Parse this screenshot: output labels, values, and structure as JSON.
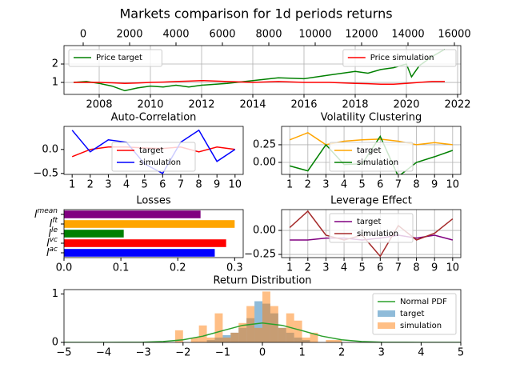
{
  "title": "Markets comparison for 1d periods returns",
  "chart_data": [
    {
      "type": "line",
      "grid": true,
      "x": [
        2007,
        2007.5,
        2008,
        2008.5,
        2009,
        2009.5,
        2010,
        2010.5,
        2011,
        2011.5,
        2012,
        2013,
        2014,
        2015,
        2016,
        2017,
        2018,
        2018.5,
        2019,
        2019.5,
        2020,
        2020.2,
        2020.5,
        2021,
        2021.5
      ],
      "xlim": [
        2006.625,
        2022.125
      ],
      "xticks": [
        2008,
        2010,
        2012,
        2014,
        2016,
        2018,
        2020,
        2022
      ],
      "x2lim": [
        -828,
        16276
      ],
      "x2ticks": [
        0,
        2000,
        4000,
        6000,
        8000,
        10000,
        12000,
        14000,
        16000
      ],
      "ylim": [
        0.35,
        3.0
      ],
      "yticks": [
        1,
        2
      ],
      "series": [
        {
          "name": "Price target",
          "color": "#008000",
          "legend": "upper left",
          "values": [
            1.0,
            1.05,
            0.95,
            0.8,
            0.55,
            0.7,
            0.8,
            0.75,
            0.85,
            0.75,
            0.85,
            0.95,
            1.1,
            1.25,
            1.2,
            1.4,
            1.6,
            1.5,
            1.7,
            1.8,
            2.0,
            1.3,
            1.9,
            2.4,
            2.8
          ]
        },
        {
          "name": "Price simulation",
          "color": "#ff0000",
          "legend": "upper right",
          "values": [
            1.0,
            1.0,
            1.0,
            0.98,
            0.95,
            0.97,
            1.0,
            1.02,
            1.05,
            1.07,
            1.1,
            1.05,
            1.0,
            1.05,
            1.0,
            1.0,
            0.95,
            0.93,
            0.9,
            0.9,
            0.95,
            0.97,
            1.0,
            1.05,
            1.05
          ]
        }
      ]
    },
    {
      "type": "line",
      "title": "Auto-Correlation",
      "grid": false,
      "legend": "lower center",
      "x": [
        1,
        2,
        3,
        4,
        5,
        6,
        7,
        8,
        9,
        10
      ],
      "xlim": [
        0.55,
        10.45
      ],
      "xticks": [
        1,
        2,
        3,
        4,
        5,
        6,
        7,
        8,
        9,
        10
      ],
      "ylim": [
        -0.52,
        0.48
      ],
      "yticks": [
        {
          "value": -0.5,
          "label": "−0.5"
        },
        {
          "value": 0,
          "label": "0.0"
        }
      ],
      "series": [
        {
          "name": "target",
          "color": "#ff0000",
          "values": [
            -0.15,
            0.0,
            0.05,
            0.05,
            0.03,
            0.02,
            0.05,
            -0.05,
            0.05,
            0.0
          ]
        },
        {
          "name": "simulation",
          "color": "#0000ff",
          "values": [
            0.4,
            -0.05,
            0.2,
            0.15,
            -0.3,
            -0.5,
            0.15,
            0.4,
            -0.25,
            0.0
          ]
        }
      ]
    },
    {
      "type": "line",
      "title": "Volatility Clustering",
      "grid": true,
      "legend": "lower center",
      "x": [
        1,
        2,
        3,
        4,
        5,
        6,
        7,
        8,
        9,
        10
      ],
      "xlim": [
        0.55,
        10.45
      ],
      "xticks": [
        1,
        2,
        3,
        4,
        5,
        6,
        7,
        8,
        9,
        10
      ],
      "ylim": [
        -0.17,
        0.51
      ],
      "yticks": [
        {
          "value": 0,
          "label": "0.00"
        },
        0.25
      ],
      "series": [
        {
          "name": "target",
          "color": "#ffa500",
          "values": [
            0.32,
            0.42,
            0.25,
            0.3,
            0.32,
            0.33,
            0.3,
            0.25,
            0.28,
            0.25
          ]
        },
        {
          "name": "simulation",
          "color": "#008000",
          "values": [
            -0.05,
            -0.12,
            0.25,
            -0.03,
            -0.02,
            0.37,
            -0.2,
            0.0,
            0.08,
            0.17
          ]
        }
      ]
    },
    {
      "type": "hbar",
      "title": "Losses",
      "grid": false,
      "categories": [
        [
          "l",
          "mean"
        ],
        [
          "l",
          "ft"
        ],
        [
          "l",
          "le"
        ],
        [
          "l",
          "vc"
        ],
        [
          "l",
          "ac"
        ]
      ],
      "values": [
        0.24,
        0.3,
        0.105,
        0.285,
        0.265
      ],
      "colors": [
        "#800080",
        "#ffa500",
        "#008000",
        "#ff0000",
        "#0000ff"
      ],
      "xlim": [
        0,
        0.315
      ],
      "xticks": [
        {
          "value": 0,
          "label": "0.0"
        },
        0.1,
        0.2,
        0.3
      ]
    },
    {
      "type": "line",
      "title": "Leverage Effect",
      "grid": true,
      "legend": "upper center",
      "x": [
        1,
        2,
        3,
        4,
        5,
        6,
        7,
        8,
        9,
        10
      ],
      "xlim": [
        0.55,
        10.45
      ],
      "xticks": [
        1,
        2,
        3,
        4,
        5,
        6,
        7,
        8,
        9,
        10
      ],
      "ylim": [
        -0.283,
        0.217
      ],
      "yticks": [
        {
          "value": -0.25,
          "label": "−0.25"
        },
        {
          "value": 0,
          "label": "0.00"
        }
      ],
      "series": [
        {
          "name": "target",
          "color": "#800080",
          "values": [
            -0.1,
            -0.1,
            -0.08,
            -0.08,
            -0.1,
            -0.08,
            -0.05,
            -0.08,
            -0.05,
            -0.1
          ]
        },
        {
          "name": "simulation",
          "color": "#a52a2a",
          "values": [
            0.03,
            0.2,
            -0.05,
            -0.1,
            -0.05,
            -0.27,
            0.05,
            -0.1,
            -0.03,
            0.12
          ]
        }
      ]
    },
    {
      "type": "histogram",
      "title": "Return Distribution",
      "grid": false,
      "legend": "upper right",
      "bins": [
        -2.2,
        -2.0,
        -1.8,
        -1.6,
        -1.4,
        -1.2,
        -1.0,
        -0.8,
        -0.6,
        -0.4,
        -0.2,
        0.0,
        0.2,
        0.4,
        0.6,
        0.8,
        1.0,
        1.2,
        1.4,
        1.6,
        1.8,
        2.0,
        2.2
      ],
      "xlim": [
        -5,
        5
      ],
      "xticks": [
        {
          "value": -5,
          "label": "−5"
        },
        {
          "value": -4,
          "label": "−4"
        },
        {
          "value": -3,
          "label": "−3"
        },
        {
          "value": -2,
          "label": "−2"
        },
        {
          "value": -1,
          "label": "−1"
        },
        0,
        1,
        2,
        3,
        4,
        5
      ],
      "ylim": [
        0,
        1.09
      ],
      "yticks": [
        0,
        1
      ],
      "series": [
        {
          "name": "Normal PDF",
          "color": "#2ca02c",
          "x": [
            -5,
            -4.5,
            -4,
            -3.5,
            -3,
            -2.5,
            -2,
            -1.5,
            -1,
            -0.5,
            0,
            0.5,
            1,
            1.5,
            2,
            2.5,
            3,
            3.5,
            4,
            4.5,
            5
          ],
          "values": [
            0,
            0,
            0.0001,
            0.0009,
            0.0044,
            0.0175,
            0.054,
            0.1295,
            0.242,
            0.352,
            0.399,
            0.352,
            0.242,
            0.1295,
            0.054,
            0.0175,
            0.0044,
            0.0009,
            0.0001,
            0,
            0
          ]
        },
        {
          "name": "target",
          "color": "#1f77b4",
          "alpha": 0.5,
          "values": [
            0,
            0,
            0,
            0,
            0.05,
            0.1,
            0.15,
            0.2,
            0.3,
            0.5,
            0.85,
            0.8,
            0.6,
            0.3,
            0.2,
            0.1,
            0.05,
            0,
            0,
            0,
            0,
            0
          ]
        },
        {
          "name": "simulation",
          "color": "#ff7f0e",
          "alpha": 0.5,
          "values": [
            0.25,
            0,
            0.1,
            0.35,
            0.1,
            0.6,
            0.1,
            0.2,
            0.4,
            0.75,
            0.3,
            1.05,
            0.75,
            0.3,
            0.6,
            0.45,
            0.1,
            0.2,
            0,
            0.05,
            0.05,
            0
          ]
        }
      ]
    }
  ]
}
